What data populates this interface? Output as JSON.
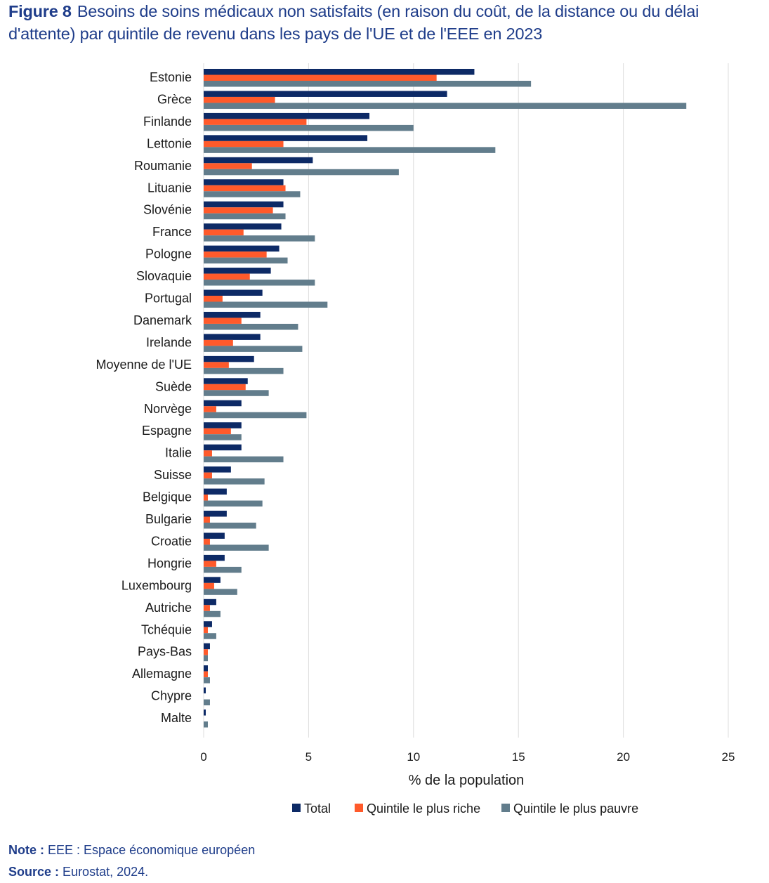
{
  "header": {
    "figure_label": "Figure 8",
    "title": "Besoins de soins médicaux non satisfaits (en raison du coût, de la distance ou du délai d'attente) par quintile de revenu dans les pays de l'UE et de l'EEE en 2023"
  },
  "footer": {
    "note_label": "Note :",
    "note_text": "EEE : Espace économique européen",
    "source_label": "Source :",
    "source_text": "Eurostat, 2024."
  },
  "colors": {
    "total": "#0d2a66",
    "rich": "#ff5a2b",
    "poor": "#627d8c",
    "grid": "#dcdcdc",
    "title": "#1f3d8a"
  },
  "chart_data": {
    "type": "bar",
    "orientation": "horizontal",
    "xlabel": "% de la population",
    "xlim": [
      0,
      25
    ],
    "xticks": [
      0,
      5,
      10,
      15,
      20,
      25
    ],
    "grid": true,
    "legend_position": "bottom",
    "categories": [
      "Estonie",
      "Grèce",
      "Finlande",
      "Lettonie",
      "Roumanie",
      "Lituanie",
      "Slovénie",
      "France",
      "Pologne",
      "Slovaquie",
      "Portugal",
      "Danemark",
      "Irelande",
      "Moyenne de l'UE",
      "Suède",
      "Norvège",
      "Espagne",
      "Italie",
      "Suisse",
      "Belgique",
      "Bulgarie",
      "Croatie",
      "Hongrie",
      "Luxembourg",
      "Autriche",
      "Tchéquie",
      "Pays-Bas",
      "Allemagne",
      "Chypre",
      "Malte"
    ],
    "series": [
      {
        "name": "Total",
        "color": "#0d2a66",
        "values": [
          12.9,
          11.6,
          7.9,
          7.8,
          5.2,
          3.8,
          3.8,
          3.7,
          3.6,
          3.2,
          2.8,
          2.7,
          2.7,
          2.4,
          2.1,
          1.8,
          1.8,
          1.8,
          1.3,
          1.1,
          1.1,
          1.0,
          1.0,
          0.8,
          0.6,
          0.4,
          0.3,
          0.2,
          0.1,
          0.1
        ]
      },
      {
        "name": "Quintile le plus riche",
        "color": "#ff5a2b",
        "values": [
          11.1,
          3.4,
          4.9,
          3.8,
          2.3,
          3.9,
          3.3,
          1.9,
          3.0,
          2.2,
          0.9,
          1.8,
          1.4,
          1.2,
          2.0,
          0.6,
          1.3,
          0.4,
          0.4,
          0.2,
          0.3,
          0.3,
          0.6,
          0.5,
          0.3,
          0.2,
          0.2,
          0.2,
          0.0,
          0.0
        ]
      },
      {
        "name": "Quintile le plus pauvre",
        "color": "#627d8c",
        "values": [
          15.6,
          23.0,
          10.0,
          13.9,
          9.3,
          4.6,
          3.9,
          5.3,
          4.0,
          5.3,
          5.9,
          4.5,
          4.7,
          3.8,
          3.1,
          4.9,
          1.8,
          3.8,
          2.9,
          2.8,
          2.5,
          3.1,
          1.8,
          1.6,
          0.8,
          0.6,
          0.2,
          0.3,
          0.3,
          0.2
        ]
      }
    ]
  }
}
